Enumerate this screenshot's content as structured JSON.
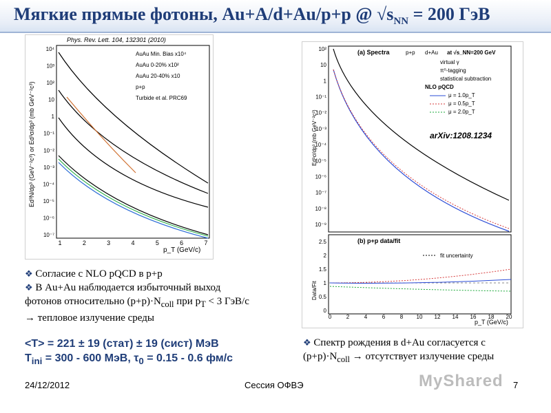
{
  "slide": {
    "title_main": "Мягкие прямые фотоны, Au+A/d+Au/p+p @ √s",
    "title_sub": "NN",
    "title_tail": " = 200 ГэВ"
  },
  "left_figure": {
    "reference": "Phys. Rev. Lett. 104, 132301 (2010)",
    "legend": [
      "AuAu Min. Bias x10⁴",
      "AuAu 0-20% x10²",
      "AuAu 20-40% x10",
      "p+p",
      "Turbide et al. PRC69"
    ],
    "x_label": "p_T (GeV/c)",
    "y_label": "Ed³N/dp³ (GeV⁻²c³) or Ed³σ/dp³ (mb GeV⁻²c³)",
    "x_ticks": [
      "1",
      "2",
      "3",
      "4",
      "5",
      "6",
      "7"
    ],
    "y_ticks": [
      "10⁴",
      "10³",
      "10²",
      "10",
      "1",
      "10⁻¹",
      "10⁻²",
      "10⁻³",
      "10⁻⁴",
      "10⁻⁵",
      "10⁻⁶",
      "10⁻⁷"
    ]
  },
  "right_figure": {
    "panel_a": "(a) Spectra",
    "panel_a_cols": [
      "p+p",
      "d+Au",
      "at √s_NN=200 GeV"
    ],
    "panel_a_legend": [
      "virtual γ",
      "π⁰-tagging",
      "statistical subtraction",
      "NLO pQCD",
      "μ = 1.0p_T",
      "μ = 0.5p_T",
      "μ = 2.0p_T"
    ],
    "arxiv": "arXiv:1208.1234",
    "panel_b": "(b) p+p data/fit",
    "panel_b_legend": "fit uncertainty",
    "x_label": "p_T (GeV/c)",
    "y_label_a": "Ed³σ/dp³ (mb GeV⁻²c³)",
    "y_label_b": "Data/Fit",
    "x_ticks": [
      "0",
      "2",
      "4",
      "6",
      "8",
      "10",
      "12",
      "14",
      "16",
      "18",
      "20"
    ],
    "y_ticks_a": [
      "10²",
      "10",
      "1",
      "10⁻¹",
      "10⁻²",
      "10⁻³",
      "10⁻⁴",
      "10⁻⁵",
      "10⁻⁶",
      "10⁻⁷",
      "10⁻⁸",
      "10⁻⁹"
    ],
    "y_ticks_b": [
      "2.5",
      "2",
      "1.5",
      "1",
      "0.5",
      "0"
    ]
  },
  "notes_left": {
    "line1": "Согласие с NLO pQCD в p+p",
    "line2": "В Au+Au наблюдается избыточный выход",
    "line3": "фотонов относительно (p+p)·N",
    "line3_sub": "coll",
    "line3_tail": " при p",
    "line3_sub2": "T",
    "line3_tail2": " < 3 ГэВ/с",
    "line4": "→ тепловое излучение среды"
  },
  "temperature": {
    "line1": "<T> = 221 ± 19 (стат) ± 19 (сист) МэВ",
    "line2_a": "T",
    "line2_sub": "ini",
    "line2_b": " = 300 - 600 МэВ, τ",
    "line2_sub2": "0",
    "line2_c": " = 0.15 - 0.6 фм/с"
  },
  "notes_right": {
    "line1": "Спектр рождения в d+Au согласуется с",
    "line2": "(p+p)·N",
    "line2_sub": "coll",
    "line2_tail": " → отсутствует излучение среды"
  },
  "footer": {
    "date": "24/12/2012",
    "session": "Сессия ОФВЭ",
    "page": "7",
    "watermark": "MyShared"
  },
  "colors": {
    "title": "#1f3d78",
    "accent": "#1f3d78"
  }
}
